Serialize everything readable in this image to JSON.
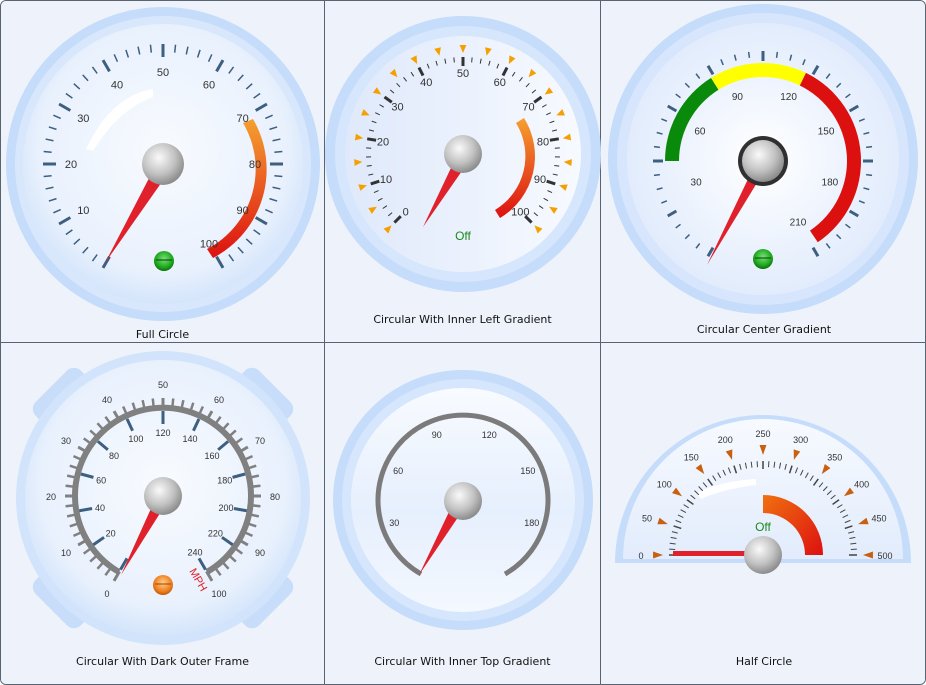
{
  "colors": {
    "needle": "#e0202a",
    "tick": "#3d5f80",
    "range_red": "#dd1010",
    "range_orange": "#f07010",
    "range_green": "#0a8a0a",
    "range_yellow": "#ffff00",
    "tick_orange": "#f5a000",
    "cap_gray": "#bdbdbd",
    "bg": "#eef3fb",
    "rim_blue": "#b9d4f7",
    "lamp_green": "#1da81d",
    "lamp_orange": "#f08020"
  },
  "gauges": [
    {
      "caption": "Full Circle",
      "labels": [
        "10",
        "20",
        "30",
        "40",
        "50",
        "60",
        "70",
        "80",
        "90",
        "100"
      ],
      "value": 0,
      "indicator": "lamp-green"
    },
    {
      "caption": "Circular With Inner Left Gradient",
      "labels": [
        "0",
        "10",
        "20",
        "30",
        "40",
        "50",
        "60",
        "70",
        "80",
        "90",
        "100"
      ],
      "value": 7,
      "status_text": "Off"
    },
    {
      "caption": "Circular Center Gradient",
      "labels": [
        "30",
        "60",
        "90",
        "120",
        "150",
        "180",
        "210"
      ],
      "value": 0,
      "indicator": "lamp-green"
    },
    {
      "caption": "Circular With Dark Outer Frame",
      "outer_labels": [
        "0",
        "10",
        "20",
        "30",
        "40",
        "50",
        "60",
        "70",
        "80",
        "90",
        "100"
      ],
      "inner_labels": [
        "20",
        "40",
        "60",
        "80",
        "100",
        "120",
        "140",
        "160",
        "180",
        "200",
        "220",
        "240"
      ],
      "unit": "MPH",
      "value": 7,
      "indicator": "lamp-orange"
    },
    {
      "caption": "Circular With Inner Top Gradient",
      "labels": [
        "30",
        "60",
        "90",
        "120",
        "150",
        "180"
      ],
      "value": 7
    },
    {
      "caption": "Half Circle",
      "labels": [
        "0",
        "50",
        "100",
        "150",
        "200",
        "250",
        "300",
        "350",
        "400",
        "450",
        "500"
      ],
      "value": 0,
      "status_text": "Off"
    }
  ]
}
